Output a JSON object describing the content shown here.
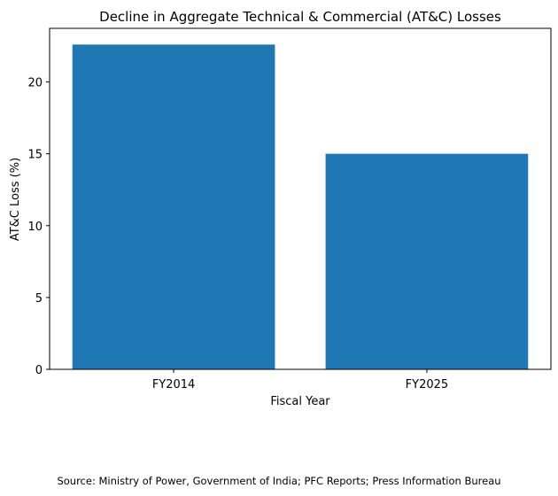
{
  "chart_data": {
    "type": "bar",
    "title": "Decline in Aggregate Technical & Commercial (AT&C) Losses",
    "xlabel": "Fiscal Year",
    "ylabel": "AT&C Loss (%)",
    "categories": [
      "FY2014",
      "FY2025"
    ],
    "values": [
      22.6,
      15.0
    ],
    "ylim": [
      0,
      23.73
    ],
    "yticks": [
      0,
      5,
      10,
      15,
      20
    ],
    "grid": false,
    "bar_color": "#1f77b4"
  },
  "footer": {
    "source": "Source: Ministry of Power, Government of India; PFC Reports; Press Information Bureau"
  }
}
